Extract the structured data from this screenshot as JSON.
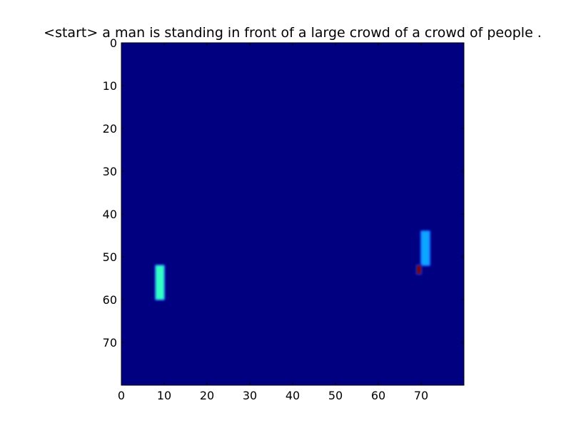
{
  "chart_data": {
    "type": "heatmap",
    "title": "<start> a man is standing in front of a large crowd of a crowd of people .",
    "xlabel": "",
    "ylabel": "",
    "grid_size": [
      80,
      80
    ],
    "xlim": [
      0,
      80
    ],
    "ylim": [
      80,
      0
    ],
    "x_ticks": [
      0,
      10,
      20,
      30,
      40,
      50,
      60,
      70
    ],
    "y_ticks": [
      0,
      10,
      20,
      30,
      40,
      50,
      60,
      70
    ],
    "colormap": "jet",
    "background_value": 0,
    "grid": false,
    "colorbar": false,
    "hotspots": [
      {
        "x_range": [
          8,
          10
        ],
        "y_range": [
          52,
          60
        ],
        "value": 0.45,
        "color": "#30ffc6"
      },
      {
        "x_range": [
          70,
          72
        ],
        "y_range": [
          44,
          52
        ],
        "value": 0.32,
        "color": "#0aa6ff"
      },
      {
        "x_range": [
          69,
          70
        ],
        "y_range": [
          52,
          54
        ],
        "value": 0.98,
        "color": "#7f0000"
      }
    ],
    "colors": {
      "background": "#000080",
      "axes": "#000000"
    }
  }
}
